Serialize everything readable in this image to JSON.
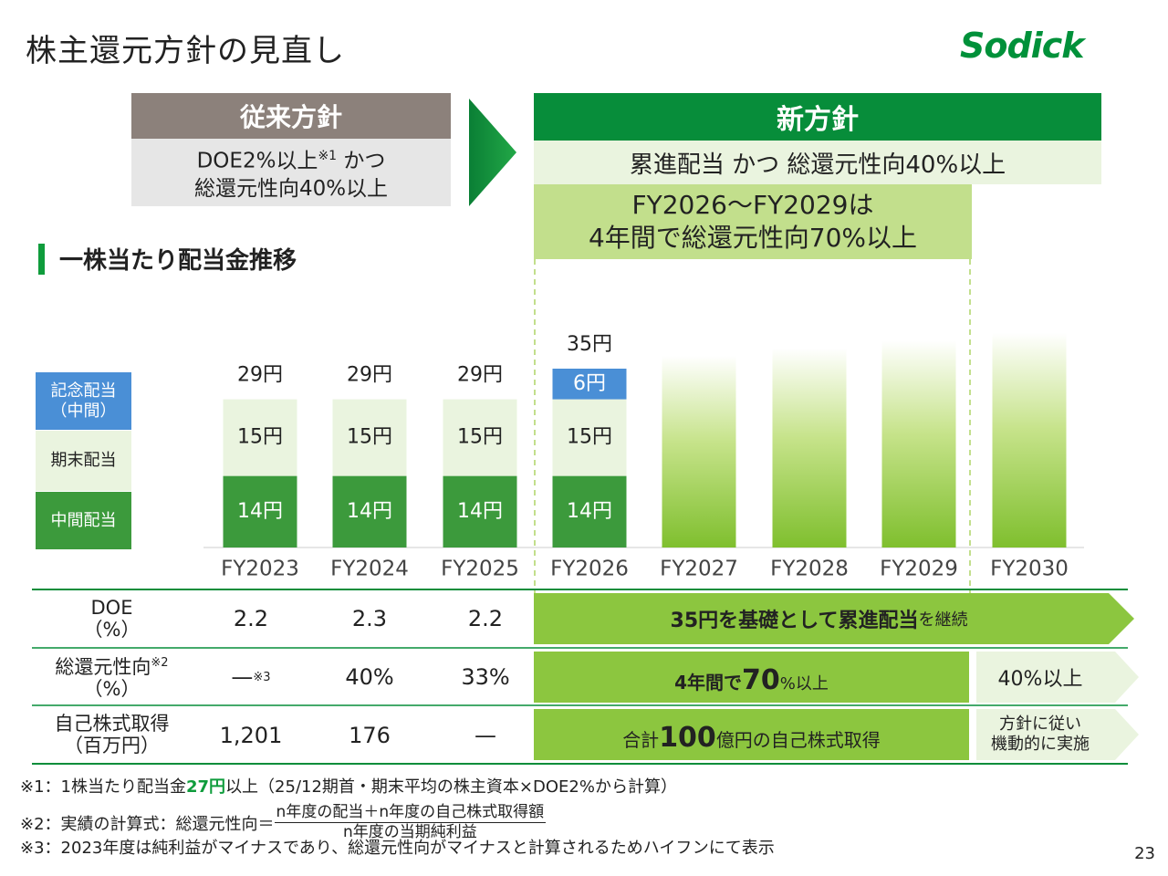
{
  "title": "株主還元方針の見直し",
  "logo": "Sodick",
  "old_policy": {
    "head": "従来方針",
    "line1_pre": "DOE2%以上",
    "line1_sup": "※1",
    "line1_post": " かつ",
    "line2": "総還元性向40%以上"
  },
  "new_policy": {
    "head": "新方針",
    "body": "累進配当 かつ 総還元性向40%以上",
    "sub1": "FY2026～FY2029は",
    "sub2": "4年間で総還元性向70%以上"
  },
  "section_title": "一株当たり配当金推移",
  "legend": {
    "kinen": "記念配当\n（中間）",
    "kimatsu": "期末配当",
    "chukan": "中間配当"
  },
  "colors": {
    "chukan": "#3c9a3c",
    "kimatsu": "#eaf4df",
    "kinen": "#4a8fd6",
    "green": "#078d3a",
    "future": "#8cc63f"
  },
  "chart_data": {
    "type": "bar",
    "stacked": true,
    "categories": [
      "FY2023",
      "FY2024",
      "FY2025",
      "FY2026",
      "FY2027",
      "FY2028",
      "FY2029",
      "FY2030"
    ],
    "series": [
      {
        "name": "中間配当",
        "values": [
          14,
          14,
          14,
          14,
          null,
          null,
          null,
          null
        ],
        "labels": [
          "14円",
          "14円",
          "14円",
          "14円"
        ]
      },
      {
        "name": "期末配当",
        "values": [
          15,
          15,
          15,
          15,
          null,
          null,
          null,
          null
        ],
        "labels": [
          "15円",
          "15円",
          "15円",
          "15円"
        ]
      },
      {
        "name": "記念配当（中間）",
        "values": [
          0,
          0,
          0,
          6,
          null,
          null,
          null,
          null
        ],
        "labels": [
          "",
          "",
          "",
          "6円"
        ]
      }
    ],
    "totals": [
      "29円",
      "29円",
      "29円",
      "35円"
    ],
    "future_indicative": [
      null,
      null,
      null,
      null,
      37.5,
      39,
      40.5,
      42
    ],
    "unit": "円"
  },
  "table": {
    "rows": [
      {
        "label1": "DOE",
        "label2": "（%）",
        "sup": "",
        "values": [
          "2.2",
          "2.3",
          "2.2"
        ]
      },
      {
        "label1": "総還元性向",
        "label2": "（%）",
        "sup": "※2",
        "values": [
          "—",
          "40%",
          "33%"
        ],
        "value_sup": "※3"
      },
      {
        "label1": "自己株式取得",
        "label2": "（百万円）",
        "sup": "",
        "values": [
          "1,201",
          "176",
          "—"
        ]
      }
    ],
    "doe_arrow": {
      "bold": "35円を基礎として累進配当",
      "small": "を継続"
    },
    "ratio_arrow": {
      "pre": "4年間で",
      "big": "70",
      "post": "%以上"
    },
    "ratio_side": "40%以上",
    "buyback_arrow": {
      "pre": "合計",
      "big": "100",
      "post": "億円の自己株式取得"
    },
    "buyback_side1": "方針に従い",
    "buyback_side2": "機動的に実施"
  },
  "footnotes": {
    "f1_pre": "※1：1株当たり配当金",
    "f1_hl": "27円",
    "f1_post": "以上（25/12期首・期末平均の株主資本×DOE2%から計算）",
    "f2_pre": "※2：実績の計算式：総還元性向＝",
    "f2_num": "n年度の配当＋n年度の自己株式取得額",
    "f2_den": "n年度の当期純利益",
    "f3": "※3：2023年度は純利益がマイナスであり、総還元性向がマイナスと計算されるためハイフンにて表示"
  },
  "page_number": "23"
}
